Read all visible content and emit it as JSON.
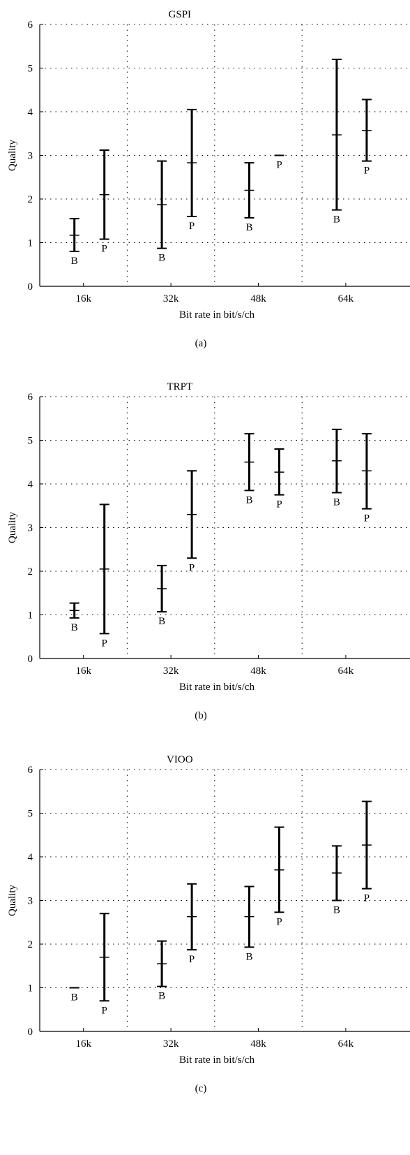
{
  "chart_data": [
    {
      "type": "errorbar",
      "title": "GSPI",
      "panel_label": "(a)",
      "xlabel": "Bit rate in bit/s/ch",
      "ylabel": "Quality",
      "categories": [
        "16k",
        "32k",
        "48k",
        "64k"
      ],
      "ylim": [
        0,
        6
      ],
      "yticks": [
        "0",
        "1",
        "2",
        "3",
        "4",
        "5",
        "6"
      ],
      "grid": true,
      "series": [
        {
          "name": "B",
          "points": [
            {
              "mean": 1.17,
              "low": 0.8,
              "high": 1.55
            },
            {
              "mean": 1.87,
              "low": 0.87,
              "high": 2.87
            },
            {
              "mean": 2.2,
              "low": 1.57,
              "high": 2.83
            },
            {
              "mean": 3.47,
              "low": 1.75,
              "high": 5.2
            }
          ]
        },
        {
          "name": "P",
          "points": [
            {
              "mean": 2.1,
              "low": 1.08,
              "high": 3.12
            },
            {
              "mean": 2.83,
              "low": 1.6,
              "high": 4.05
            },
            {
              "mean": 3.0,
              "low": 3.0,
              "high": 3.0
            },
            {
              "mean": 3.57,
              "low": 2.87,
              "high": 4.28
            }
          ]
        }
      ]
    },
    {
      "type": "errorbar",
      "title": "TRPT",
      "panel_label": "(b)",
      "xlabel": "Bit rate in bit/s/ch",
      "ylabel": "Quality",
      "categories": [
        "16k",
        "32k",
        "48k",
        "64k"
      ],
      "ylim": [
        0,
        6
      ],
      "yticks": [
        "0",
        "1",
        "2",
        "3",
        "4",
        "5",
        "6"
      ],
      "grid": true,
      "series": [
        {
          "name": "B",
          "points": [
            {
              "mean": 1.1,
              "low": 0.93,
              "high": 1.27
            },
            {
              "mean": 1.6,
              "low": 1.07,
              "high": 2.13
            },
            {
              "mean": 4.5,
              "low": 3.85,
              "high": 5.15
            },
            {
              "mean": 4.53,
              "low": 3.8,
              "high": 5.25
            }
          ]
        },
        {
          "name": "P",
          "points": [
            {
              "mean": 2.05,
              "low": 0.57,
              "high": 3.53
            },
            {
              "mean": 3.3,
              "low": 2.3,
              "high": 4.3
            },
            {
              "mean": 4.27,
              "low": 3.75,
              "high": 4.8
            },
            {
              "mean": 4.3,
              "low": 3.43,
              "high": 5.15
            }
          ]
        }
      ]
    },
    {
      "type": "errorbar",
      "title": "VIOO",
      "panel_label": "(c)",
      "xlabel": "Bit rate in bit/s/ch",
      "ylabel": "Quality",
      "categories": [
        "16k",
        "32k",
        "48k",
        "64k"
      ],
      "ylim": [
        0,
        6
      ],
      "yticks": [
        "0",
        "1",
        "2",
        "3",
        "4",
        "5",
        "6"
      ],
      "grid": true,
      "series": [
        {
          "name": "B",
          "points": [
            {
              "mean": 1.0,
              "low": 1.0,
              "high": 1.0
            },
            {
              "mean": 1.55,
              "low": 1.03,
              "high": 2.07
            },
            {
              "mean": 2.63,
              "low": 1.93,
              "high": 3.32
            },
            {
              "mean": 3.63,
              "low": 3.0,
              "high": 4.25
            }
          ]
        },
        {
          "name": "P",
          "points": [
            {
              "mean": 1.7,
              "low": 0.7,
              "high": 2.7
            },
            {
              "mean": 2.63,
              "low": 1.87,
              "high": 3.38
            },
            {
              "mean": 3.7,
              "low": 2.73,
              "high": 4.68
            },
            {
              "mean": 4.27,
              "low": 3.27,
              "high": 5.27
            }
          ]
        }
      ]
    }
  ]
}
